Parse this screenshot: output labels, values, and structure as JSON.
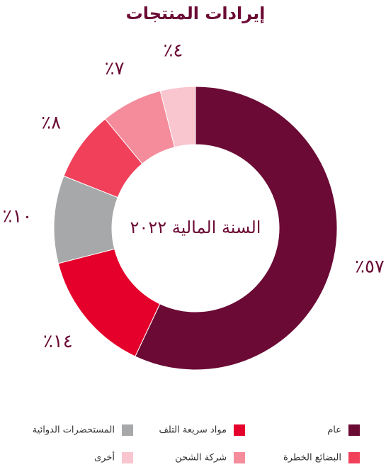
{
  "chart_data": {
    "type": "donut",
    "title": "إيرادات المنتجات",
    "center_label": "السنة المالية ٢٠٢٢",
    "categories": [
      "عام",
      "مواد سريعة التلف",
      "المستحضرات الدوائية",
      "البضائع الخطرة",
      "شركة الشحن",
      "أخرى"
    ],
    "values": [
      57,
      14,
      10,
      8,
      7,
      4
    ],
    "value_labels": [
      "٪٥٧",
      "٪١٤",
      "٪١٠",
      "٪٨",
      "٪٧",
      "٪٤"
    ],
    "colors": [
      "#6b0a35",
      "#e4002b",
      "#a7a8aa",
      "#f0405a",
      "#f48c9b",
      "#f9c5cf"
    ]
  }
}
